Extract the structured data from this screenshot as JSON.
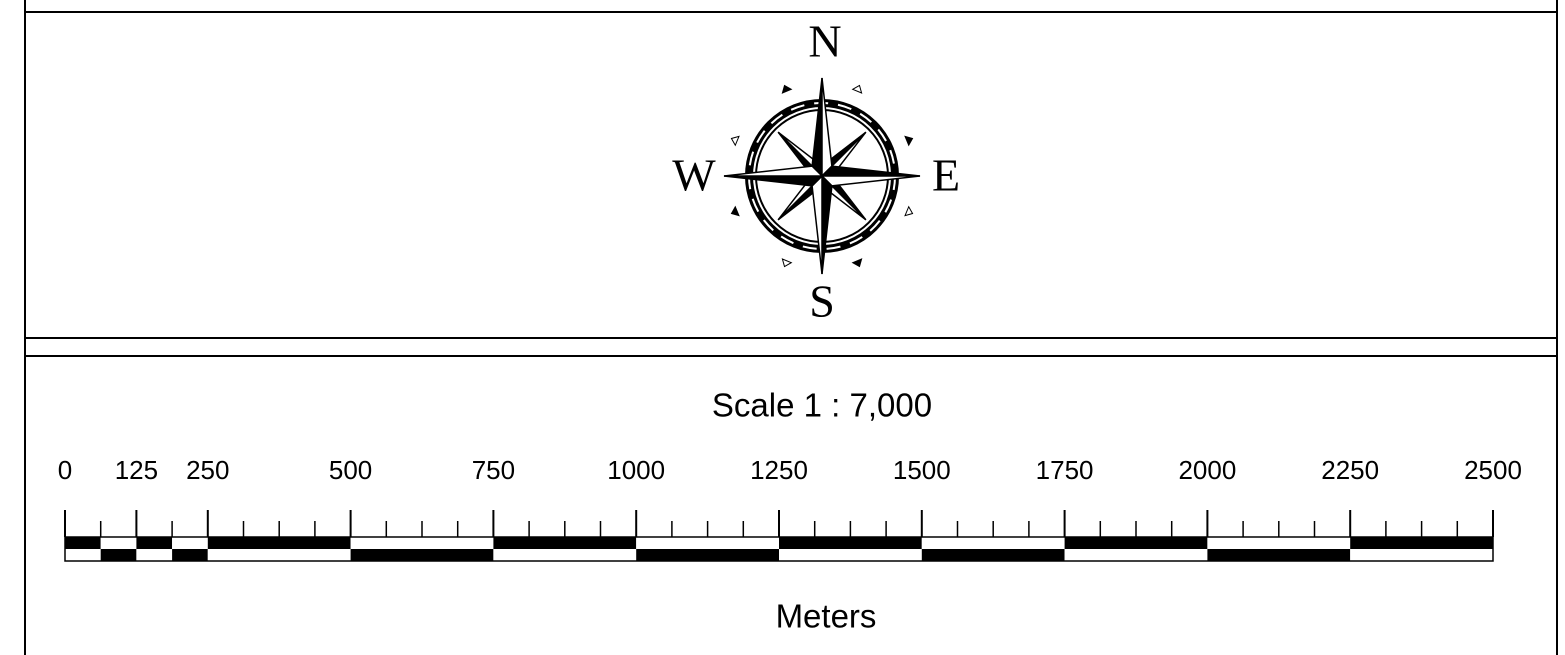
{
  "compass": {
    "north": "N",
    "east": "E",
    "south": "S",
    "west": "W"
  },
  "scale_bar": {
    "title": "Scale 1 : 7,000",
    "ticks": [
      0,
      125,
      250,
      500,
      750,
      1000,
      1250,
      1500,
      1750,
      2000,
      2250,
      2500
    ],
    "units": "Meters"
  }
}
